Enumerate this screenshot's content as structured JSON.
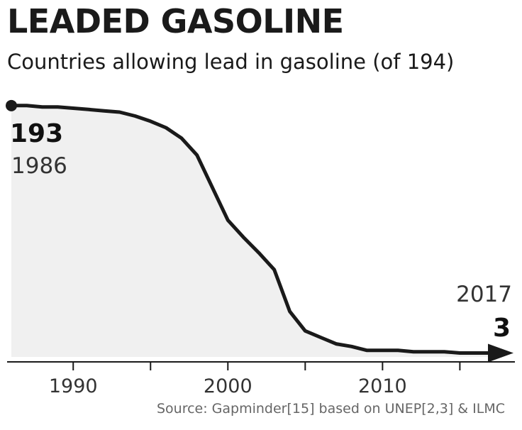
{
  "header": {
    "title": "LEADED GASOLINE",
    "subtitle": "Countries allowing lead in gasoline (of 194)"
  },
  "source": "Source: Gapminder[15] based on UNEP[2,3] & ILMC",
  "annotations": {
    "start_value": "193",
    "start_year": "1986",
    "end_year": "2017",
    "end_value": "3"
  },
  "colors": {
    "line": "#1a1a1a",
    "fill": "#f0f0f0",
    "axis": "#1a1a1a"
  },
  "chart_data": {
    "type": "area",
    "title": "LEADED GASOLINE",
    "subtitle": "Countries allowing lead in gasoline (of 194)",
    "x": [
      1986,
      1987,
      1988,
      1989,
      1990,
      1991,
      1992,
      1993,
      1994,
      1995,
      1996,
      1997,
      1998,
      1999,
      2000,
      2001,
      2002,
      2003,
      2004,
      2005,
      2006,
      2007,
      2008,
      2009,
      2010,
      2011,
      2012,
      2013,
      2014,
      2015,
      2016,
      2017
    ],
    "series": [
      {
        "values": [
          193,
          193,
          192,
          192,
          191,
          190,
          189,
          188,
          185,
          181,
          176,
          168,
          155,
          130,
          105,
          92,
          80,
          67,
          35,
          20,
          15,
          10,
          8,
          5,
          5,
          5,
          4,
          4,
          4,
          3,
          3,
          3
        ]
      }
    ],
    "xlim": [
      1986,
      2017
    ],
    "ylim": [
      0,
      194
    ],
    "xticks": [
      1990,
      2000,
      2010
    ],
    "grid": false,
    "legend": "none"
  }
}
